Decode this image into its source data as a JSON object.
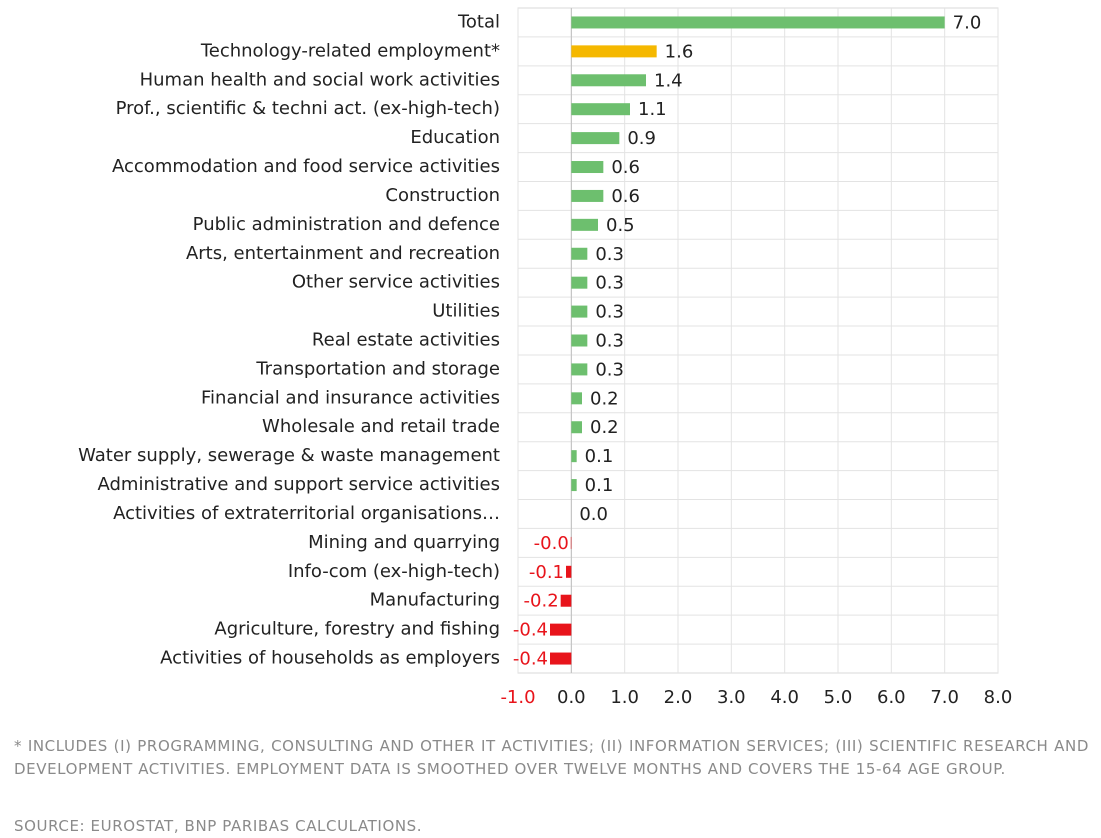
{
  "chart_data": {
    "type": "hbar",
    "categories": [
      "Total",
      "Technology-related employment*",
      "Human health and social work activities",
      "Prof., scientific & techni act. (ex-high-tech)",
      "Education",
      "Accommodation and food service activities",
      "Construction",
      "Public administration and defence",
      "Arts, entertainment and recreation",
      "Other service activities",
      "Utilities",
      "Real estate activities",
      "Transportation and storage",
      "Financial and insurance activities",
      "Wholesale and retail trade",
      "Water supply, sewerage & waste management",
      "Administrative and support service activities",
      "Activities of extraterritorial organisations…",
      "Mining and quarrying",
      "Info-com (ex-high-tech)",
      "Manufacturing",
      "Agriculture, forestry and fishing",
      "Activities of households as employers"
    ],
    "values": [
      7.0,
      1.6,
      1.4,
      1.1,
      0.9,
      0.6,
      0.6,
      0.5,
      0.3,
      0.3,
      0.3,
      0.3,
      0.3,
      0.2,
      0.2,
      0.1,
      0.1,
      0.0,
      -0.01,
      -0.1,
      -0.2,
      -0.4,
      -0.4
    ],
    "value_labels": [
      "7.0",
      "1.6",
      "1.4",
      "1.1",
      "0.9",
      "0.6",
      "0.6",
      "0.5",
      "0.3",
      "0.3",
      "0.3",
      "0.3",
      "0.3",
      "0.2",
      "0.2",
      "0.1",
      "0.1",
      "0.0",
      "-0.0",
      "-0.1",
      "-0.2",
      "-0.4",
      "-0.4"
    ],
    "colors": [
      "#6dbf6e",
      "#f5b800",
      "#6dbf6e",
      "#6dbf6e",
      "#6dbf6e",
      "#6dbf6e",
      "#6dbf6e",
      "#6dbf6e",
      "#6dbf6e",
      "#6dbf6e",
      "#6dbf6e",
      "#6dbf6e",
      "#6dbf6e",
      "#6dbf6e",
      "#6dbf6e",
      "#6dbf6e",
      "#6dbf6e",
      "#6dbf6e",
      "#e8141b",
      "#e8141b",
      "#e8141b",
      "#e8141b",
      "#e8141b"
    ],
    "negative_label_color": "#e8141b",
    "xlim": [
      -1,
      8
    ],
    "xticks": [
      {
        "value": -1,
        "label": "-1.0"
      },
      {
        "value": 0,
        "label": "0.0"
      },
      {
        "value": 1,
        "label": "1.0"
      },
      {
        "value": 2,
        "label": "2.0"
      },
      {
        "value": 3,
        "label": "3.0"
      },
      {
        "value": 4,
        "label": "4.0"
      },
      {
        "value": 5,
        "label": "5.0"
      },
      {
        "value": 6,
        "label": "6.0"
      },
      {
        "value": 7,
        "label": "7.0"
      },
      {
        "value": 8,
        "label": "8.0"
      }
    ],
    "grid": true,
    "footnote": "* INCLUDES (I) PROGRAMMING, CONSULTING AND OTHER IT ACTIVITIES; (II) INFORMATION SERVICES; (III) SCIENTIFIC RESEARCH AND DEVELOPMENT ACTIVITIES. EMPLOYMENT DATA IS SMOOTHED OVER TWELVE MONTHS AND COVERS THE 15-64 AGE GROUP.",
    "source": "SOURCE: EUROSTAT, BNP PARIBAS CALCULATIONS."
  }
}
